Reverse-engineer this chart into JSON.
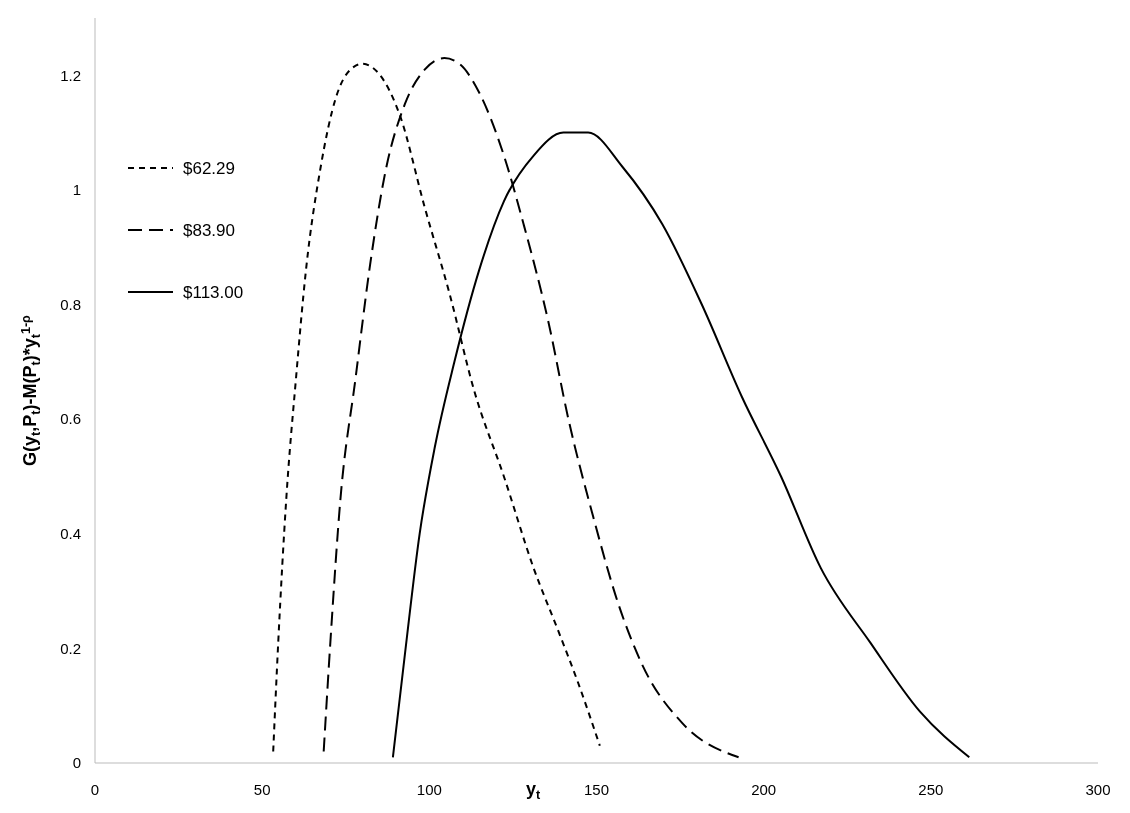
{
  "chart_data": {
    "type": "line",
    "xlabel": "y$_{t}$",
    "ylabel": "G(y$_{t}$,P$_{t}$)-M(P$_{t}$)*y$_{t}$$^{1-ρ}$",
    "xlim": [
      0,
      300
    ],
    "ylim": [
      0,
      1.3
    ],
    "xticks": [
      0,
      50,
      100,
      150,
      200,
      250,
      300
    ],
    "yticks": [
      0,
      0.2,
      0.4,
      0.6,
      0.8,
      1,
      1.2
    ],
    "grid": false,
    "legend": "top left",
    "series": [
      {
        "name": "$62.29",
        "color": "#000000",
        "line_style": "dotted",
        "x": [
          53.3,
          54.8,
          57.2,
          60.1,
          63.1,
          67.5,
          72,
          76.4,
          80,
          85.3,
          91.2,
          98.6,
          106,
          113.4,
          122.3,
          131.2,
          138.6,
          144.5,
          151
        ],
        "values": [
          0.02,
          0.21,
          0.46,
          0.67,
          0.86,
          1.04,
          1.16,
          1.21,
          1.22,
          1.2,
          1.13,
          0.97,
          0.82,
          0.65,
          0.5,
          0.34,
          0.23,
          0.14,
          0.03
        ]
      },
      {
        "name": "$83.90",
        "color": "#000000",
        "line_style": "dashed",
        "x": [
          68.4,
          70.5,
          73.4,
          77.9,
          82.3,
          86.8,
          92.7,
          98.6,
          104.5,
          109,
          114.9,
          122.3,
          128.2,
          135.6,
          141.6,
          149,
          156.4,
          163.8,
          175.6,
          192.5
        ],
        "values": [
          0.02,
          0.22,
          0.46,
          0.67,
          0.87,
          1.03,
          1.15,
          1.21,
          1.23,
          1.22,
          1.17,
          1.06,
          0.94,
          0.77,
          0.6,
          0.43,
          0.28,
          0.17,
          0.07,
          0.01
        ]
      },
      {
        "name": "$113.00",
        "color": "#000000",
        "line_style": "solid",
        "x": [
          89.1,
          92.7,
          97.1,
          101.6,
          107.5,
          114.9,
          122.3,
          131.2,
          140.1,
          147.5,
          157.8,
          169.7,
          181.5,
          193.4,
          205.2,
          217.1,
          231.9,
          246.7,
          261.5
        ],
        "values": [
          0.01,
          0.19,
          0.4,
          0.55,
          0.7,
          0.86,
          0.98,
          1.06,
          1.1,
          1.1,
          1.04,
          0.94,
          0.8,
          0.64,
          0.5,
          0.34,
          0.21,
          0.09,
          0.01
        ]
      }
    ]
  }
}
